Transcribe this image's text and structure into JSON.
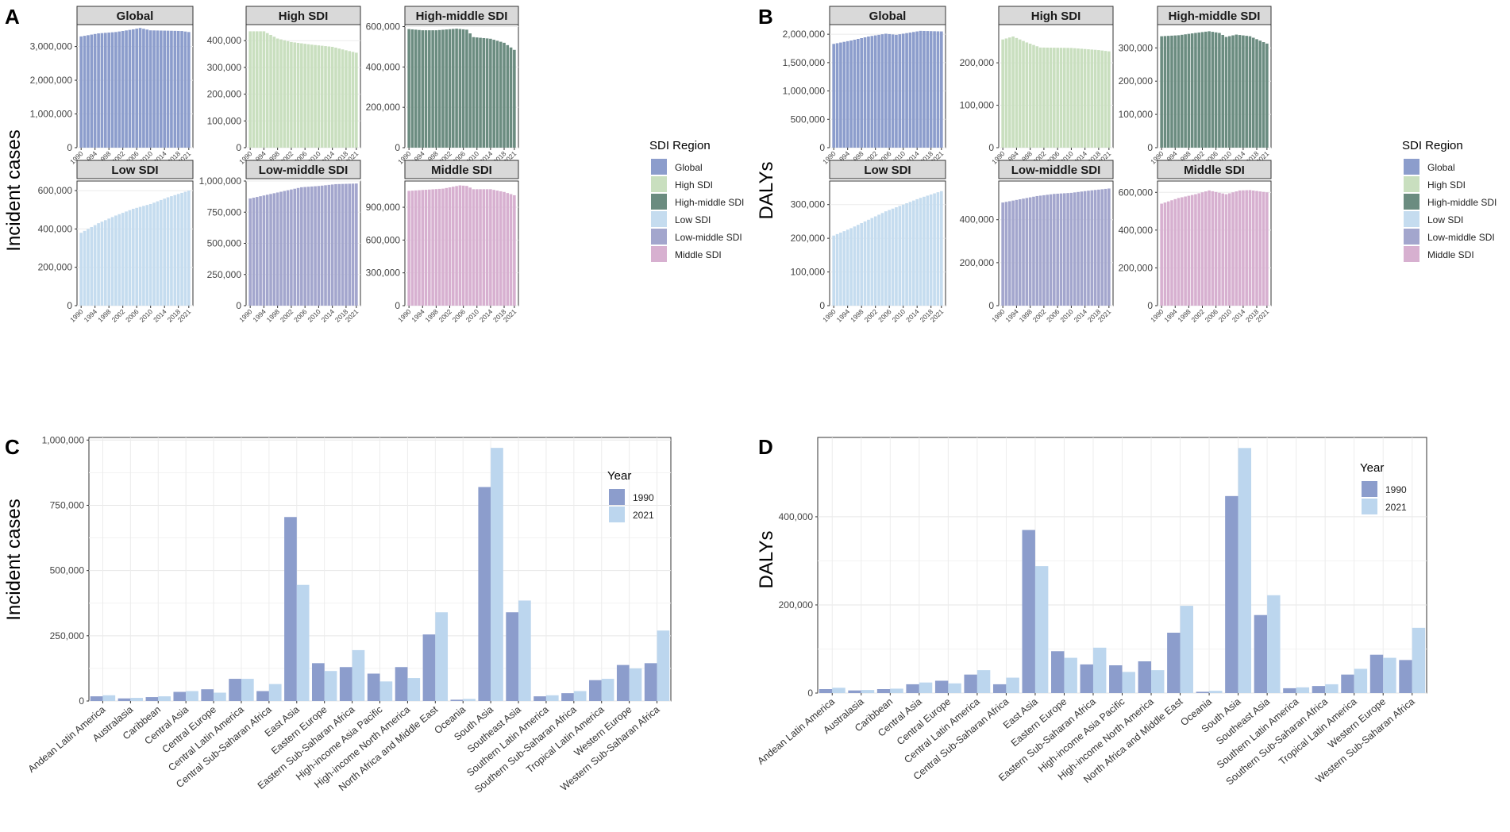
{
  "panels": {
    "A": {
      "label": "A",
      "ylabel": "Incident cases"
    },
    "B": {
      "label": "B",
      "ylabel": "DALYs"
    },
    "C": {
      "label": "C",
      "ylabel": "Incident cases"
    },
    "D": {
      "label": "D",
      "ylabel": "DALYs"
    }
  },
  "sdi_legend": {
    "title": "SDI Region",
    "items": [
      {
        "name": "Global",
        "color": "#8c9dcc"
      },
      {
        "name": "High SDI",
        "color": "#c9dfbf"
      },
      {
        "name": "High-middle SDI",
        "color": "#6b8c80"
      },
      {
        "name": "Low SDI",
        "color": "#c5dcef"
      },
      {
        "name": "Low-middle SDI",
        "color": "#a3a6cd"
      },
      {
        "name": "Middle SDI",
        "color": "#d7b0d0"
      }
    ]
  },
  "year_legend": {
    "title": "Year",
    "items": [
      {
        "name": "1990",
        "color": "#8c9dcc"
      },
      {
        "name": "2021",
        "color": "#bcd6ee"
      }
    ]
  },
  "chart_data": [
    {
      "id": "A",
      "type": "bar",
      "faceted": true,
      "ylabel": "Incident cases",
      "x_ticks": [
        "1990",
        "1994",
        "1998",
        "2002",
        "2006",
        "2010",
        "2014",
        "2018",
        "2021"
      ],
      "facets": [
        {
          "title": "Global",
          "color": "#8c9dcc",
          "ylim": [
            0,
            3650000
          ],
          "yticks": [
            0,
            1000000,
            2000000,
            3000000
          ],
          "ytick_labels": [
            "0",
            "1,000,000",
            "2,000,000",
            "3,000,000"
          ],
          "anchors": [
            [
              1990,
              3300000
            ],
            [
              1995,
              3390000
            ],
            [
              2000,
              3430000
            ],
            [
              2005,
              3510000
            ],
            [
              2007,
              3550000
            ],
            [
              2010,
              3480000
            ],
            [
              2015,
              3470000
            ],
            [
              2019,
              3460000
            ],
            [
              2021,
              3430000
            ]
          ]
        },
        {
          "title": "High SDI",
          "color": "#c9dfbf",
          "ylim": [
            0,
            460000
          ],
          "yticks": [
            0,
            100000,
            200000,
            300000,
            400000
          ],
          "ytick_labels": [
            "0",
            "100,000",
            "200,000",
            "300,000",
            "400,000"
          ],
          "anchors": [
            [
              1990,
              435000
            ],
            [
              1994,
              435000
            ],
            [
              1998,
              408000
            ],
            [
              2002,
              395000
            ],
            [
              2008,
              385000
            ],
            [
              2014,
              377000
            ],
            [
              2018,
              364000
            ],
            [
              2021,
              355000
            ]
          ]
        },
        {
          "title": "High-middle SDI",
          "color": "#6b8c80",
          "ylim": [
            0,
            610000
          ],
          "yticks": [
            0,
            200000,
            400000,
            600000
          ],
          "ytick_labels": [
            "0",
            "200,000",
            "400,000",
            "600,000"
          ],
          "anchors": [
            [
              1990,
              588000
            ],
            [
              1994,
              582000
            ],
            [
              1998,
              582000
            ],
            [
              2004,
              590000
            ],
            [
              2007,
              585000
            ],
            [
              2009,
              548000
            ],
            [
              2014,
              540000
            ],
            [
              2018,
              520000
            ],
            [
              2021,
              485000
            ]
          ]
        },
        {
          "title": "Low SDI",
          "color": "#c5dcef",
          "ylim": [
            0,
            650000
          ],
          "yticks": [
            0,
            200000,
            400000,
            600000
          ],
          "ytick_labels": [
            "0",
            "200,000",
            "400,000",
            "600,000"
          ],
          "anchors": [
            [
              1990,
              380000
            ],
            [
              1995,
              430000
            ],
            [
              2000,
              470000
            ],
            [
              2005,
              505000
            ],
            [
              2010,
              530000
            ],
            [
              2015,
              565000
            ],
            [
              2021,
              600000
            ]
          ]
        },
        {
          "title": "Low-middle SDI",
          "color": "#a3a6cd",
          "ylim": [
            0,
            1000000
          ],
          "yticks": [
            0,
            250000,
            500000,
            750000,
            1000000
          ],
          "ytick_labels": [
            "0",
            "250,000",
            "500,000",
            "750,000",
            "1,000,000"
          ],
          "anchors": [
            [
              1990,
              860000
            ],
            [
              1995,
              890000
            ],
            [
              2000,
              920000
            ],
            [
              2005,
              950000
            ],
            [
              2010,
              960000
            ],
            [
              2015,
              975000
            ],
            [
              2021,
              980000
            ]
          ]
        },
        {
          "title": "Middle SDI",
          "color": "#d7b0d0",
          "ylim": [
            0,
            1140000
          ],
          "yticks": [
            0,
            300000,
            600000,
            900000
          ],
          "ytick_labels": [
            "0",
            "300,000",
            "600,000",
            "900,000"
          ],
          "anchors": [
            [
              1990,
              1050000
            ],
            [
              1995,
              1060000
            ],
            [
              2000,
              1070000
            ],
            [
              2005,
              1100000
            ],
            [
              2007,
              1095000
            ],
            [
              2009,
              1065000
            ],
            [
              2014,
              1065000
            ],
            [
              2018,
              1040000
            ],
            [
              2021,
              1010000
            ]
          ]
        }
      ]
    },
    {
      "id": "B",
      "type": "bar",
      "faceted": true,
      "ylabel": "DALYs",
      "x_ticks": [
        "1990",
        "1994",
        "1998",
        "2002",
        "2006",
        "2010",
        "2014",
        "2018",
        "2021"
      ],
      "facets": [
        {
          "title": "Global",
          "color": "#8c9dcc",
          "ylim": [
            0,
            2170000
          ],
          "yticks": [
            0,
            500000,
            1000000,
            1500000,
            2000000
          ],
          "ytick_labels": [
            "0",
            "500,000",
            "1,000,000",
            "1,500,000",
            "2,000,000"
          ],
          "anchors": [
            [
              1990,
              1830000
            ],
            [
              1995,
              1890000
            ],
            [
              2000,
              1960000
            ],
            [
              2005,
              2010000
            ],
            [
              2008,
              1990000
            ],
            [
              2011,
              2020000
            ],
            [
              2015,
              2060000
            ],
            [
              2021,
              2050000
            ]
          ]
        },
        {
          "title": "High SDI",
          "color": "#c9dfbf",
          "ylim": [
            0,
            290000
          ],
          "yticks": [
            0,
            100000,
            200000
          ],
          "ytick_labels": [
            "0",
            "100,000",
            "200,000"
          ],
          "anchors": [
            [
              1990,
              255000
            ],
            [
              1993,
              262000
            ],
            [
              1997,
              248000
            ],
            [
              2001,
              236000
            ],
            [
              2010,
              235000
            ],
            [
              2018,
              230000
            ],
            [
              2021,
              227000
            ]
          ]
        },
        {
          "title": "High-middle SDI",
          "color": "#6b8c80",
          "ylim": [
            0,
            370000
          ],
          "yticks": [
            0,
            100000,
            200000,
            300000
          ],
          "ytick_labels": [
            "0",
            "100,000",
            "200,000",
            "300,000"
          ],
          "anchors": [
            [
              1990,
              335000
            ],
            [
              1995,
              338000
            ],
            [
              2000,
              345000
            ],
            [
              2004,
              350000
            ],
            [
              2007,
              345000
            ],
            [
              2009,
              333000
            ],
            [
              2012,
              340000
            ],
            [
              2016,
              335000
            ],
            [
              2021,
              313000
            ]
          ]
        },
        {
          "title": "Low SDI",
          "color": "#c5dcef",
          "ylim": [
            0,
            370000
          ],
          "yticks": [
            0,
            100000,
            200000,
            300000
          ],
          "ytick_labels": [
            "0",
            "100,000",
            "200,000",
            "300,000"
          ],
          "anchors": [
            [
              1990,
              208000
            ],
            [
              1995,
              230000
            ],
            [
              2000,
              255000
            ],
            [
              2005,
              280000
            ],
            [
              2010,
              300000
            ],
            [
              2015,
              320000
            ],
            [
              2021,
              340000
            ]
          ]
        },
        {
          "title": "Low-middle SDI",
          "color": "#a3a6cd",
          "ylim": [
            0,
            580000
          ],
          "yticks": [
            0,
            200000,
            400000
          ],
          "ytick_labels": [
            "0",
            "200,000",
            "400,000"
          ],
          "anchors": [
            [
              1990,
              480000
            ],
            [
              1995,
              495000
            ],
            [
              2000,
              510000
            ],
            [
              2005,
              520000
            ],
            [
              2010,
              525000
            ],
            [
              2015,
              535000
            ],
            [
              2021,
              545000
            ]
          ]
        },
        {
          "title": "Middle SDI",
          "color": "#d7b0d0",
          "ylim": [
            0,
            660000
          ],
          "yticks": [
            0,
            200000,
            400000,
            600000
          ],
          "ytick_labels": [
            "0",
            "200,000",
            "400,000",
            "600,000"
          ],
          "anchors": [
            [
              1990,
              540000
            ],
            [
              1995,
              570000
            ],
            [
              2000,
              590000
            ],
            [
              2004,
              610000
            ],
            [
              2007,
              598000
            ],
            [
              2009,
              590000
            ],
            [
              2013,
              610000
            ],
            [
              2016,
              612000
            ],
            [
              2021,
              600000
            ]
          ]
        }
      ]
    },
    {
      "id": "C",
      "type": "bar",
      "grouped": true,
      "ylabel": "Incident cases",
      "ylim": [
        0,
        1010000
      ],
      "yticks": [
        0,
        250000,
        500000,
        750000,
        1000000
      ],
      "ytick_labels": [
        "0",
        "250,000",
        "500,000",
        "750,000",
        "1,000,000"
      ],
      "categories": [
        "Andean Latin America",
        "Australasia",
        "Caribbean",
        "Central Asia",
        "Central Europe",
        "Central Latin America",
        "Central Sub-Saharan Africa",
        "East Asia",
        "Eastern Europe",
        "Eastern Sub-Saharan Africa",
        "High-income Asia Pacific",
        "High-income North America",
        "North Africa and Middle East",
        "Oceania",
        "South Asia",
        "Southeast Asia",
        "Southern Latin America",
        "Southern Sub-Saharan Africa",
        "Tropical Latin America",
        "Western Europe",
        "Western Sub-Saharan Africa"
      ],
      "series": [
        {
          "name": "1990",
          "values": [
            18000,
            10000,
            15000,
            35000,
            45000,
            85000,
            38000,
            705000,
            145000,
            130000,
            105000,
            130000,
            255000,
            5000,
            820000,
            340000,
            18000,
            30000,
            80000,
            138000,
            145000
          ]
        },
        {
          "name": "2021",
          "values": [
            22000,
            12000,
            18000,
            38000,
            32000,
            85000,
            65000,
            445000,
            115000,
            195000,
            75000,
            88000,
            340000,
            8000,
            970000,
            385000,
            22000,
            38000,
            85000,
            125000,
            270000
          ]
        }
      ]
    },
    {
      "id": "D",
      "type": "bar",
      "grouped": true,
      "ylabel": "DALYs",
      "ylim": [
        0,
        580000
      ],
      "yticks": [
        0,
        200000,
        400000
      ],
      "ytick_labels": [
        "0",
        "200,000",
        "400,000"
      ],
      "categories": [
        "Andean Latin America",
        "Australasia",
        "Caribbean",
        "Central Asia",
        "Central Europe",
        "Central Latin America",
        "Central Sub-Saharan Africa",
        "East Asia",
        "Eastern Europe",
        "Eastern Sub-Saharan Africa",
        "High-income Asia Pacific",
        "High-income North America",
        "North Africa and Middle East",
        "Oceania",
        "South Asia",
        "Southeast Asia",
        "Southern Latin America",
        "Southern Sub-Saharan Africa",
        "Tropical Latin America",
        "Western Europe",
        "Western Sub-Saharan Africa"
      ],
      "series": [
        {
          "name": "1990",
          "values": [
            9000,
            6000,
            9000,
            20000,
            28000,
            42000,
            20000,
            370000,
            95000,
            65000,
            63000,
            72000,
            137000,
            3000,
            447000,
            177000,
            11000,
            16000,
            42000,
            87000,
            75000
          ]
        },
        {
          "name": "2021",
          "values": [
            12000,
            7000,
            10000,
            24000,
            22000,
            52000,
            35000,
            288000,
            80000,
            103000,
            48000,
            52000,
            198000,
            5000,
            556000,
            222000,
            13000,
            20000,
            55000,
            80000,
            148000
          ]
        }
      ]
    }
  ]
}
